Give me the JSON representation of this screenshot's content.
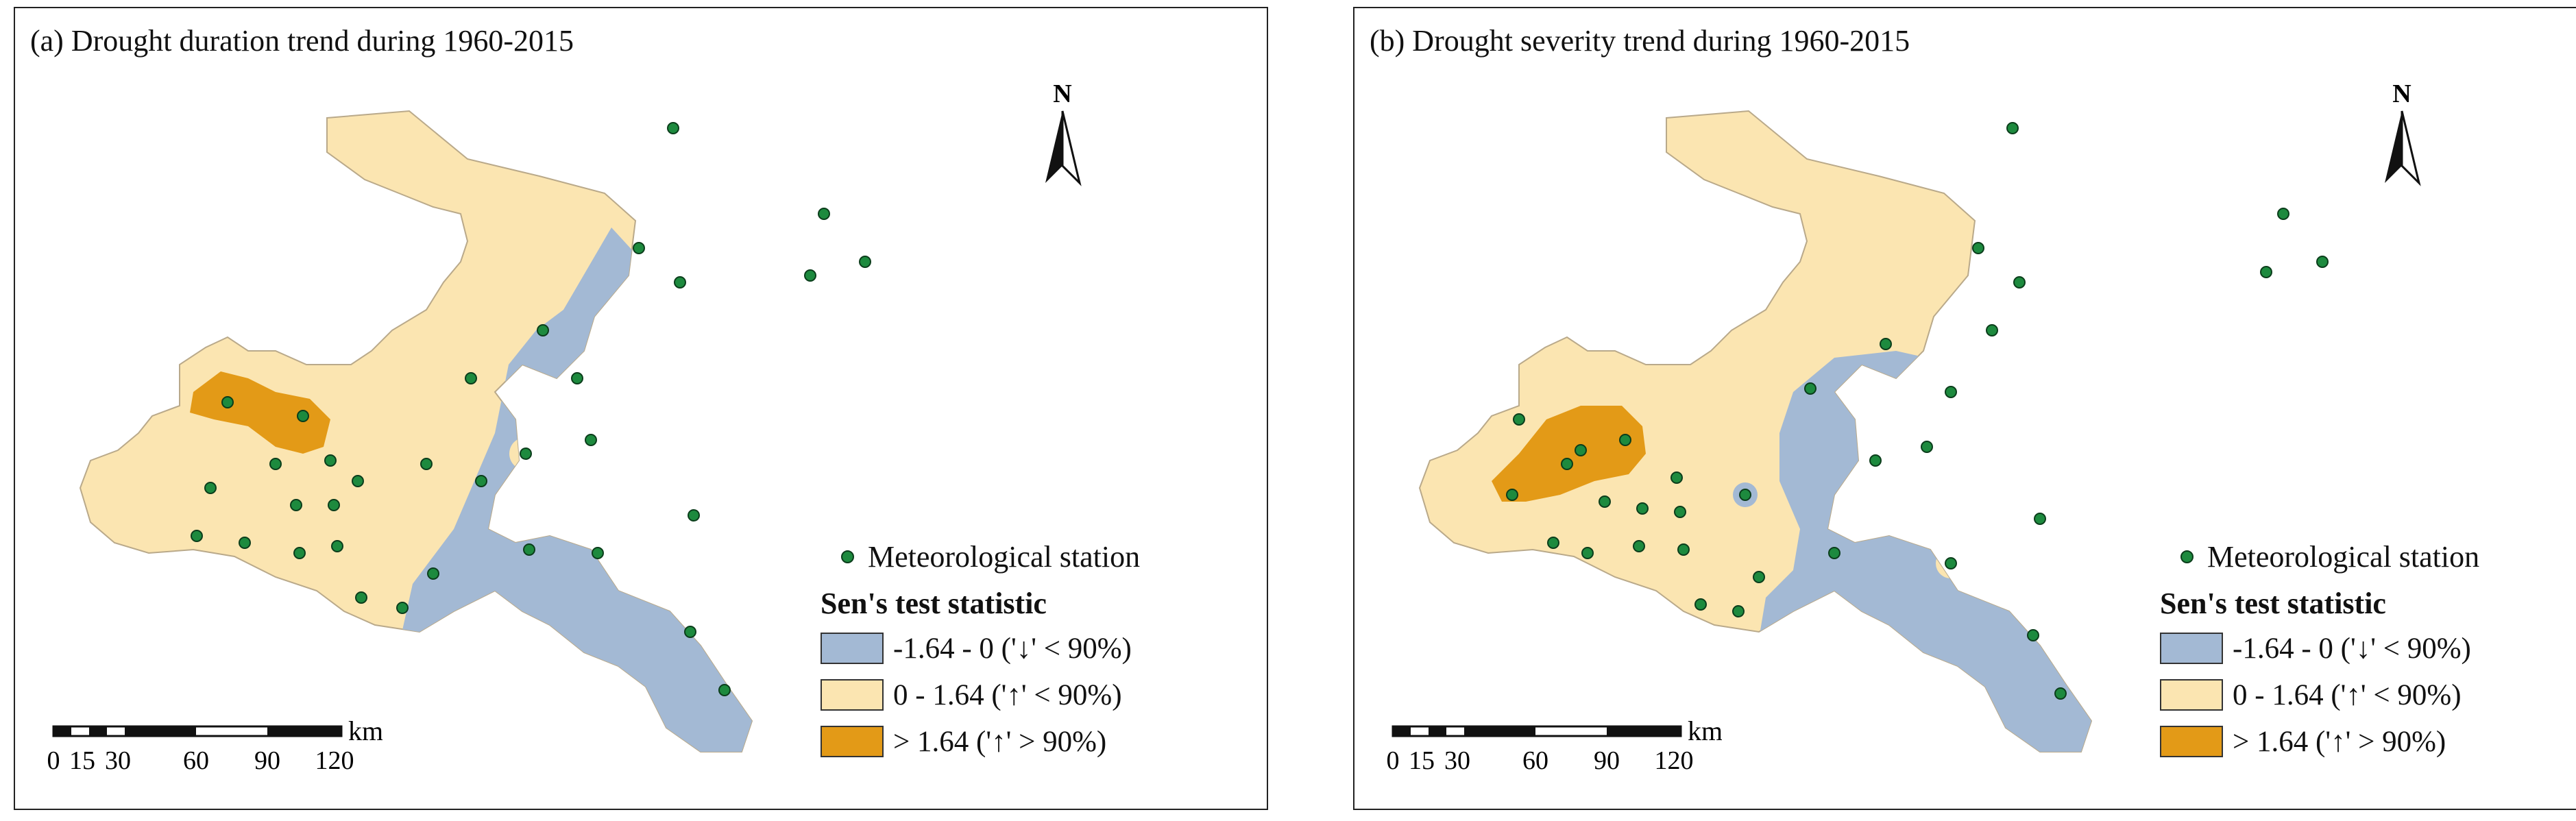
{
  "panels": [
    {
      "title": "(a) Drought duration trend during 1960-2015"
    },
    {
      "title": "(b) Drought severity trend during 1960-2015"
    }
  ],
  "north_label": "N",
  "legend": {
    "station_label": "Meteorological station",
    "header": "Sen's test statistic",
    "classes": [
      {
        "label": "-1.64 - 0 ('↓' < 90%)",
        "color": "#a3b9d4"
      },
      {
        "label": "0 - 1.64 ('↑' < 90%)",
        "color": "#fbe5b1"
      },
      {
        "label": "> 1.64 ('↑' > 90%)",
        "color": "#e39a17"
      }
    ]
  },
  "scale_bar": {
    "unit": "km",
    "ticks": [
      "0",
      "15",
      "30",
      "60",
      "90",
      "120"
    ]
  },
  "colors": {
    "decrease": "#a3b9d4",
    "increase": "#fbe5b1",
    "significant": "#e39a17",
    "station": "#1d8a3e"
  }
}
